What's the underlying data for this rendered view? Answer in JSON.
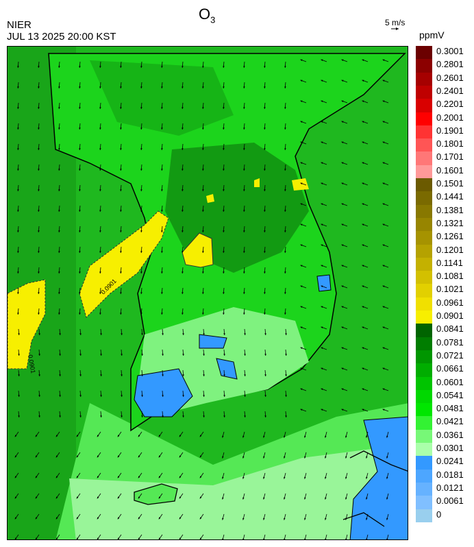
{
  "header": {
    "pollutant": "O",
    "pollutant_sub": "3",
    "agency": "NIER",
    "datetime": "JUL 13 2025 20:00 KST",
    "wind_reference": "5 m/s",
    "unit": "ppmV"
  },
  "map": {
    "contour_labels": [
      "0.0901",
      "0.0901"
    ],
    "icons": {
      "wind_field": "wind-vector-arrows",
      "coastline": "coastline-outline",
      "boundaries": "province-boundaries"
    }
  },
  "legend": {
    "labels": [
      "0.3001",
      "0.2801",
      "0.2601",
      "0.2401",
      "0.2201",
      "0.2001",
      "0.1901",
      "0.1801",
      "0.1701",
      "0.1601",
      "0.1501",
      "0.1441",
      "0.1381",
      "0.1321",
      "0.1261",
      "0.1201",
      "0.1141",
      "0.1081",
      "0.1021",
      "0.0961",
      "0.0901",
      "0.0841",
      "0.0781",
      "0.0721",
      "0.0661",
      "0.0601",
      "0.0541",
      "0.0481",
      "0.0421",
      "0.0361",
      "0.0301",
      "0.0241",
      "0.0181",
      "0.0121",
      "0.0061",
      "0"
    ],
    "colors": [
      "#6b0000",
      "#8c0000",
      "#a60000",
      "#bf0000",
      "#d90000",
      "#ff0000",
      "#ff3333",
      "#ff5555",
      "#ff7777",
      "#ff9999",
      "#6b5a00",
      "#7a6a00",
      "#887800",
      "#978500",
      "#a69300",
      "#b5a200",
      "#c4b100",
      "#d3c000",
      "#e2d000",
      "#f0e000",
      "#f7ef00",
      "#006400",
      "#007d00",
      "#009600",
      "#00ad00",
      "#00c400",
      "#00d800",
      "#00e600",
      "#33f233",
      "#77f877",
      "#aaffaa",
      "#3399ff",
      "#4da6ff",
      "#66b2ff",
      "#80bfff",
      "#99cfee"
    ]
  }
}
